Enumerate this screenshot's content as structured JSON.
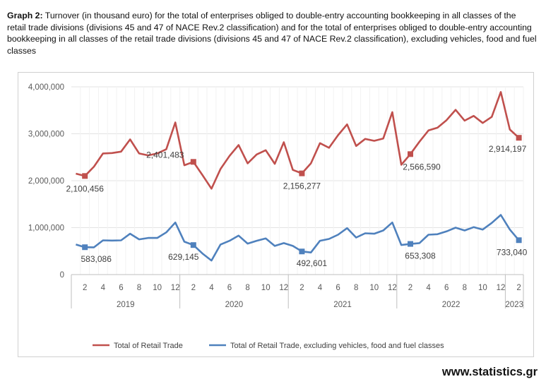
{
  "caption": {
    "label": "Graph 2:",
    "text": " Turnover (in thousand euro) for the total of enterprises obliged to double-entry accounting bookkeeping in all classes of the retail trade divisions (divisions 45 and 47 of NACE Rev.2 classification) and for the total of enterprises obliged to double-entry accounting bookkeeping in all classes of the retail trade divisions (divisions 45 and 47 of NACE Rev.2 classification), excluding vehicles, food and fuel classes"
  },
  "footer": {
    "source": "www.statistics.gr"
  },
  "colors": {
    "series1": "#c0504d",
    "series2": "#4f81bd",
    "grid": "#e3e3e3",
    "axis": "#bfbfbf",
    "text": "#595959"
  },
  "chart_data": {
    "type": "line",
    "title": "",
    "xlabel": "",
    "ylabel": "",
    "ylim": [
      0,
      4000000
    ],
    "y_ticks": [
      0,
      1000000,
      2000000,
      3000000,
      4000000
    ],
    "y_tick_labels": [
      "0",
      "1,000,000",
      "2,000,000",
      "3,000,000",
      "4,000,000"
    ],
    "x_month_ticks": [
      "2",
      "4",
      "6",
      "8",
      "10",
      "12",
      "2",
      "4",
      "6",
      "8",
      "10",
      "12",
      "2",
      "4",
      "6",
      "8",
      "10",
      "12",
      "2",
      "4",
      "6",
      "8",
      "10",
      "12",
      "2"
    ],
    "years": [
      {
        "label": "2019",
        "start": 1,
        "end": 12
      },
      {
        "label": "2020",
        "start": 13,
        "end": 24
      },
      {
        "label": "2021",
        "start": 25,
        "end": 36
      },
      {
        "label": "2022",
        "start": 37,
        "end": 48
      },
      {
        "label": "2023",
        "start": 49,
        "end": 50
      }
    ],
    "series": [
      {
        "name": "Total of Retail Trade",
        "color": "#c0504d",
        "values": [
          2150000,
          2100456,
          2300000,
          2580000,
          2590000,
          2620000,
          2880000,
          2580000,
          2540000,
          2580000,
          2670000,
          3240000,
          2330000,
          2401483,
          2120000,
          1830000,
          2250000,
          2530000,
          2760000,
          2370000,
          2560000,
          2650000,
          2360000,
          2820000,
          2230000,
          2156277,
          2370000,
          2800000,
          2700000,
          2970000,
          3200000,
          2740000,
          2890000,
          2850000,
          2900000,
          3460000,
          2340000,
          2566590,
          2830000,
          3070000,
          3130000,
          3290000,
          3510000,
          3280000,
          3380000,
          3230000,
          3360000,
          3890000,
          3090000,
          2914197
        ],
        "markers": [
          {
            "index": 2,
            "value": 2100456,
            "label": "2,100,456"
          },
          {
            "index": 14,
            "value": 2401483,
            "label": "2,401,483"
          },
          {
            "index": 26,
            "value": 2156277,
            "label": "2,156,277"
          },
          {
            "index": 38,
            "value": 2566590,
            "label": "2,566,590"
          },
          {
            "index": 50,
            "value": 2914197,
            "label": "2,914,197"
          }
        ]
      },
      {
        "name": "Total of Retail Trade, excluding vehicles, food and fuel classes",
        "color": "#4f81bd",
        "values": [
          640000,
          583086,
          580000,
          730000,
          725000,
          730000,
          870000,
          750000,
          780000,
          780000,
          900000,
          1110000,
          700000,
          629145,
          450000,
          300000,
          640000,
          720000,
          830000,
          660000,
          720000,
          770000,
          610000,
          670000,
          610000,
          492601,
          470000,
          720000,
          760000,
          850000,
          990000,
          790000,
          880000,
          870000,
          940000,
          1110000,
          630000,
          653308,
          670000,
          850000,
          860000,
          920000,
          1000000,
          940000,
          1010000,
          960000,
          1100000,
          1270000,
          960000,
          733040
        ],
        "markers": [
          {
            "index": 2,
            "value": 583086,
            "label": "583,086"
          },
          {
            "index": 14,
            "value": 629145,
            "label": "629,145"
          },
          {
            "index": 26,
            "value": 492601,
            "label": "492,601"
          },
          {
            "index": 38,
            "value": 653308,
            "label": "653,308"
          },
          {
            "index": 50,
            "value": 733040,
            "label": "733,040"
          }
        ]
      }
    ],
    "legend": {
      "position": "bottom"
    }
  }
}
